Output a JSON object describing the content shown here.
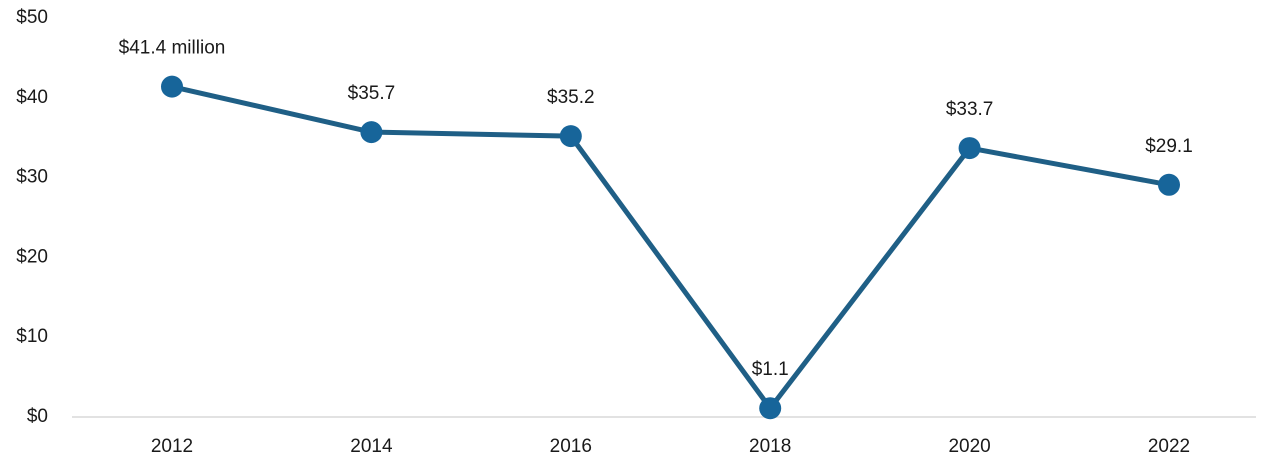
{
  "chart_data": {
    "type": "line",
    "categories": [
      "2012",
      "2014",
      "2016",
      "2018",
      "2020",
      "2022"
    ],
    "series": [
      {
        "color": "#1f5f86",
        "marker_color": "#17659a",
        "values": [
          41.4,
          35.7,
          35.2,
          1.1,
          33.7,
          29.1
        ],
        "value_labels": [
          "$41.4 million",
          "$35.7",
          "$35.2",
          "$1.1",
          "$33.7",
          "$29.1"
        ]
      }
    ],
    "ylim": [
      0,
      50
    ],
    "yticks": [
      {
        "value": 0,
        "label": "$0"
      },
      {
        "value": 10,
        "label": "$10"
      },
      {
        "value": 20,
        "label": "$20"
      },
      {
        "value": 30,
        "label": "$30"
      },
      {
        "value": 40,
        "label": "$40"
      },
      {
        "value": 50,
        "label": "$50"
      }
    ],
    "grid": false
  }
}
